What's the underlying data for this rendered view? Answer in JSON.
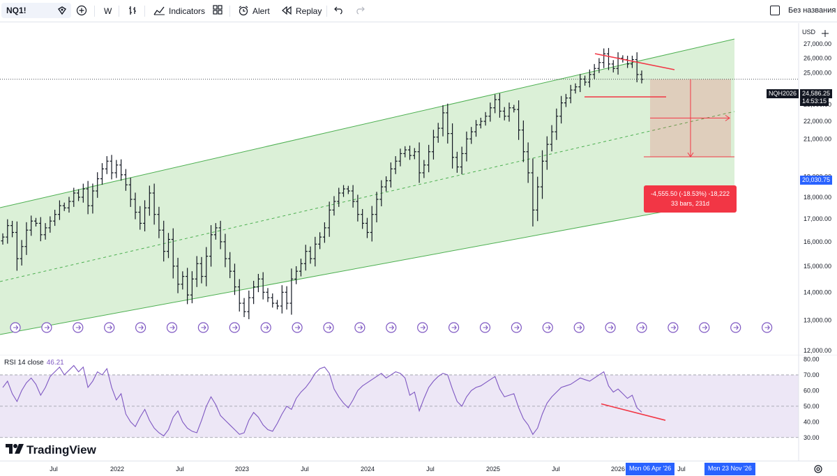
{
  "toolbar": {
    "symbol": "NQ1!",
    "interval": "W",
    "indicators_label": "Indicators",
    "alert_label": "Alert",
    "replay_label": "Replay",
    "layout_name": "Без названия"
  },
  "price_axis": {
    "currency": "USD",
    "ticks": [
      "27,000.00",
      "26,000.00",
      "25,000.00",
      "23,000.00",
      "22,000.00",
      "21,000.00",
      "19,000.00",
      "18,000.00",
      "17,000.00",
      "16,000.00",
      "15,000.00",
      "14,000.00",
      "13,000.00",
      "12,000.00"
    ],
    "last_price_symbol": "NQH2026",
    "last_price": "24,586.25",
    "countdown": "14:53:15",
    "target_price": "20,030.75"
  },
  "measure": {
    "line1": "-4,555.50 (-18.53%) -18,222",
    "line2": "33 bars, 231d"
  },
  "rsi": {
    "label": "RSI 14 close",
    "value": "46.21",
    "ticks": [
      "80.00",
      "70.00",
      "60.00",
      "50.00",
      "40.00",
      "30.00"
    ]
  },
  "date_axis": {
    "labels": [
      "Jul",
      "2022",
      "Jul",
      "2023",
      "Jul",
      "2024",
      "Jul",
      "2025",
      "Jul",
      "2026",
      "Jul"
    ],
    "cursor_label_1": "Mon 06 Apr '26",
    "cursor_label_2": "Mon 23 Nov '26"
  },
  "brand": "TradingView",
  "colors": {
    "channel_fill": "#dbf0d7",
    "channel_line": "#4caf50",
    "candles": "#131722",
    "rsi_line": "#7e57c2",
    "rsi_band": "#ede7f6",
    "trend_line": "#f23645",
    "measure_box": "#f23645",
    "accent_blue": "#2962ff"
  },
  "chart_data": {
    "type": "line",
    "title": "NQ1! weekly",
    "x_range": [
      "2021-04",
      "2026-10"
    ],
    "ylim": [
      12000,
      27500
    ],
    "y_scale": "log",
    "series": [
      {
        "values": [
          16200,
          16700,
          16400,
          15300,
          15800,
          16500,
          16900,
          16800,
          16300,
          16600,
          16900,
          17200,
          17600,
          17500,
          17800,
          18200,
          18000,
          18400,
          17600,
          18300,
          18900,
          19400,
          19800,
          19200,
          19600,
          19100,
          18600,
          17900,
          17300,
          16800,
          17500,
          18200,
          17200,
          16500,
          15600,
          16100,
          15000,
          14300,
          14600,
          13900,
          14500,
          15100,
          14600,
          15400,
          16300,
          16600,
          16000,
          15300,
          14800,
          14200,
          13600,
          13300,
          13800,
          14200,
          14500,
          14000,
          13800,
          13600,
          13500,
          14000,
          13600,
          14500,
          14800,
          15100,
          15600,
          15300,
          15900,
          16200,
          16600,
          17400,
          17800,
          18200,
          18400,
          18300,
          17800,
          17200,
          16800,
          16400,
          17200,
          17900,
          18500,
          18800,
          19400,
          19800,
          20200,
          20400,
          20100,
          20300,
          19200,
          19600,
          20300,
          21100,
          21600,
          22500,
          21300,
          20000,
          19500,
          20200,
          21000,
          21400,
          21800,
          22000,
          22300,
          22800,
          23300,
          22600,
          22300,
          22800,
          22700,
          21500,
          20300,
          19200,
          17400,
          18500,
          19800,
          20700,
          21400,
          22300,
          23100,
          23400,
          23900,
          24100,
          24600,
          24400,
          24900,
          25300,
          25700,
          26300,
          25600,
          25300,
          26000,
          25900,
          25600,
          25900,
          24900,
          24586
        ]
      },
      {
        "name": "RSI 14 close",
        "values": [
          62,
          66,
          58,
          53,
          60,
          65,
          68,
          64,
          57,
          62,
          69,
          72,
          75,
          70,
          73,
          76,
          72,
          75,
          62,
          66,
          72,
          70,
          74,
          62,
          54,
          58,
          45,
          40,
          37,
          43,
          48,
          41,
          36,
          33,
          31,
          35,
          43,
          47,
          40,
          36,
          34,
          33,
          41,
          50,
          56,
          51,
          44,
          41,
          38,
          35,
          32,
          33,
          41,
          46,
          43,
          38,
          35,
          34,
          39,
          45,
          50,
          48,
          55,
          59,
          62,
          66,
          71,
          74,
          75,
          71,
          61,
          56,
          52,
          49,
          54,
          60,
          63,
          65,
          67,
          69,
          71,
          68,
          70,
          72,
          71,
          68,
          57,
          59,
          47,
          55,
          62,
          66,
          69,
          71,
          70,
          61,
          53,
          50,
          56,
          60,
          62,
          63,
          65,
          67,
          69,
          61,
          56,
          57,
          58,
          49,
          42,
          38,
          32,
          36,
          45,
          52,
          56,
          59,
          62,
          63,
          64,
          66,
          68,
          67,
          66,
          68,
          70,
          72,
          63,
          59,
          61,
          58,
          55,
          57,
          49,
          46.21
        ]
      }
    ],
    "rsi_bands": [
      30,
      50,
      70
    ],
    "annotations": {
      "last_price": 24586.25,
      "target_price": 20030.75,
      "change": "-4,555.50 (-18.53%)",
      "bars": 33,
      "days": 231
    }
  }
}
